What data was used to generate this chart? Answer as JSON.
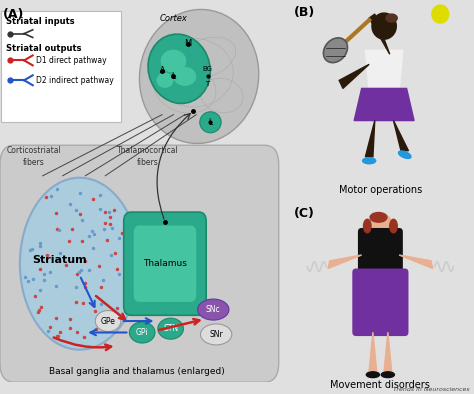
{
  "bg_color": "#e0e0e0",
  "teal": "#2aaa8a",
  "teal2": "#1a8a6a",
  "teal_light": "#44c4a0",
  "teal_mid": "#35b090",
  "blue_dot": "#6699cc",
  "red_dot": "#cc4444",
  "striatum_fill": "#aaccdd",
  "striatum_edge": "#88aacc",
  "brain_gray": "#c0c0c0",
  "brain_edge": "#999999",
  "outer_fill": "#cccccc",
  "outer_edge": "#aaaaaa",
  "purple_fill": "#8855aa",
  "purple_edge": "#6633aa",
  "title_A": "(A)",
  "title_B": "(B)",
  "title_C": "(C)",
  "label_motor": "Motor operations",
  "label_movement": "Movement disorders",
  "label_striatum": "Striatum",
  "label_thalamus": "Thalamus",
  "label_GPe": "GPe",
  "label_GPi": "GPi",
  "label_STN": "STN",
  "label_SNc": "SNc",
  "label_SNr": "SNr",
  "label_cortex": "Cortex",
  "label_M": "M",
  "label_A": "A",
  "label_L": "L",
  "label_BG": "BG",
  "label_T": "T",
  "label_L2": "L",
  "label_cortico": "Corticostriatal\nfibers",
  "label_thalamo": "Thalamocortical\nfibers",
  "label_basal": "Basal ganglia and thalamus (enlarged)",
  "legend_inputs": "Striatal inputs",
  "legend_outputs": "Striatal outputs",
  "legend_D1": "D1 direct pathway",
  "legend_D2": "D2 indirect pathway",
  "trends_label": "Trends in Neurosciences",
  "red_arrow": "#cc2222",
  "blue_arrow": "#2255cc",
  "skin_dark": "#2a1a0a",
  "skin_light": "#e8b090",
  "purple_skirt": "#7030a0",
  "cyan_shoe": "#2299dd",
  "white_shirt": "#f0f0f0",
  "yellow_ball": "#dddd00",
  "hair_red": "#993322"
}
